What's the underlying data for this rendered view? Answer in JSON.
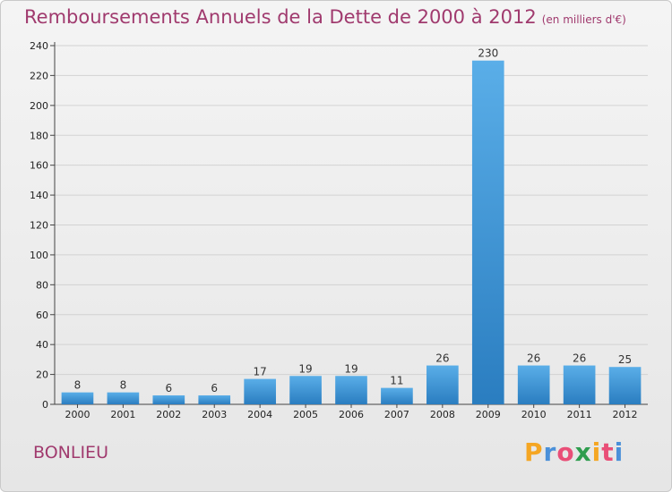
{
  "chart_data": {
    "type": "bar",
    "title": "Remboursements Annuels de la Dette de 2000 à 2012",
    "subtitle": "(en milliers d'€)",
    "categories": [
      "2000",
      "2001",
      "2002",
      "2003",
      "2004",
      "2005",
      "2006",
      "2007",
      "2008",
      "2009",
      "2010",
      "2011",
      "2012"
    ],
    "values": [
      8,
      8,
      6,
      6,
      17,
      19,
      19,
      11,
      26,
      230,
      26,
      26,
      25
    ],
    "ylim": [
      0,
      240
    ],
    "yticks": [
      0,
      20,
      40,
      60,
      80,
      100,
      120,
      140,
      160,
      180,
      200,
      220,
      240
    ],
    "grid": true,
    "bar_color_top": "#5aaee8",
    "bar_color_bottom": "#2a7dc0"
  },
  "place": "BONLIEU",
  "logo": {
    "letters": [
      "P",
      "r",
      "o",
      "x",
      "i",
      "t",
      "i"
    ],
    "colors": [
      "#f5a623",
      "#4a90d9",
      "#e94e77",
      "#2e9d4e",
      "#f5a623",
      "#e94e77",
      "#4a90d9"
    ]
  }
}
